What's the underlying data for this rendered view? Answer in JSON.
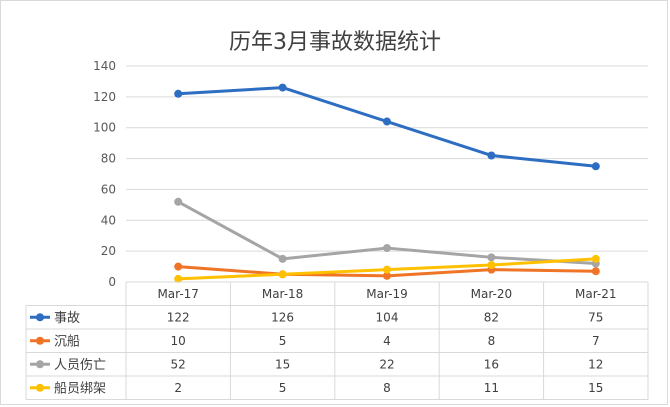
{
  "chart_data": {
    "type": "line",
    "title": "历年3月事故数据统计",
    "categories": [
      "Mar-17",
      "Mar-18",
      "Mar-19",
      "Mar-20",
      "Mar-21"
    ],
    "ylim": [
      0,
      140
    ],
    "yticks": [
      0,
      20,
      40,
      60,
      80,
      100,
      120,
      140
    ],
    "grid": true,
    "legend": "data-table",
    "series": [
      {
        "name": "事故",
        "color": "#2e6ec2",
        "values": [
          122,
          126,
          104,
          82,
          75
        ]
      },
      {
        "name": "沉船",
        "color": "#f07426",
        "values": [
          10,
          5,
          4,
          8,
          7
        ]
      },
      {
        "name": "人员伤亡",
        "color": "#a5a5a5",
        "values": [
          52,
          15,
          22,
          16,
          12
        ]
      },
      {
        "name": "船员绑架",
        "color": "#ffc000",
        "values": [
          2,
          5,
          8,
          11,
          15
        ]
      }
    ]
  }
}
